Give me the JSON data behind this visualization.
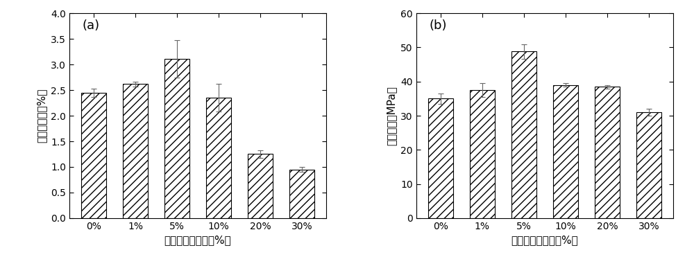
{
  "categories": [
    "0%",
    "1%",
    "5%",
    "10%",
    "20%",
    "30%"
  ],
  "chart_a": {
    "label": "(a)",
    "ylabel": "断裂延伸率（%）",
    "xlabel": "羟基磷灰石含量（%）",
    "values": [
      2.45,
      2.62,
      3.11,
      2.35,
      1.25,
      0.95
    ],
    "errors": [
      0.08,
      0.05,
      0.37,
      0.27,
      0.08,
      0.05
    ],
    "ylim": [
      0,
      4.0
    ],
    "yticks": [
      0.0,
      0.5,
      1.0,
      1.5,
      2.0,
      2.5,
      3.0,
      3.5,
      4.0
    ]
  },
  "chart_b": {
    "label": "(b)",
    "ylabel": "拉伸强度（MPa）",
    "xlabel": "羟基磷灰石含量（%）",
    "values": [
      35.0,
      37.5,
      48.8,
      39.0,
      38.5,
      31.0
    ],
    "errors": [
      1.5,
      2.0,
      2.2,
      0.5,
      0.5,
      1.0
    ],
    "ylim": [
      0,
      60
    ],
    "yticks": [
      0,
      10,
      20,
      30,
      40,
      50,
      60
    ]
  },
  "bar_color": "#ffffff",
  "bar_edgecolor": "#000000",
  "hatch": "///",
  "bar_width": 0.6,
  "figsize": [
    10.0,
    3.84
  ],
  "dpi": 100,
  "background_color": "#ffffff"
}
